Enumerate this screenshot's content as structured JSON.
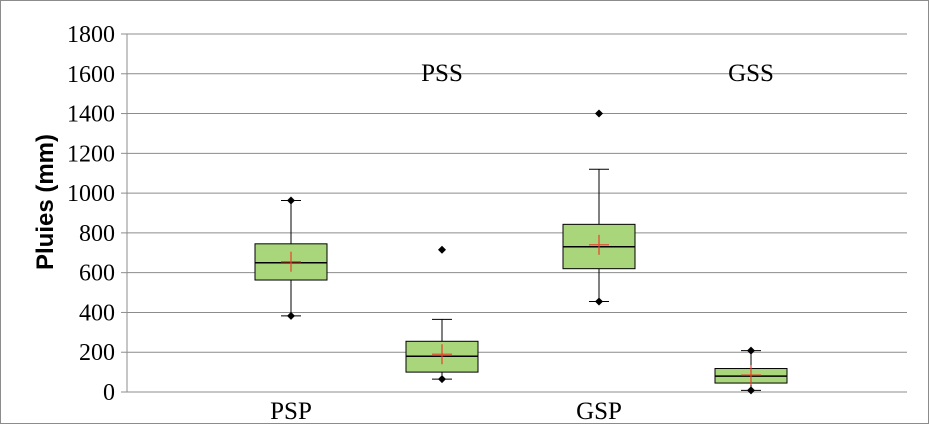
{
  "chart_data": {
    "type": "box",
    "title": "",
    "xlabel": "",
    "ylabel": "Pluies (mm)",
    "ylim": [
      0,
      1800
    ],
    "yticks": [
      0,
      200,
      400,
      600,
      800,
      1000,
      1200,
      1400,
      1600,
      1800
    ],
    "grid": true,
    "colors": {
      "box_fill": "#a9d67a",
      "box_stroke": "#000000",
      "mean_marker": "#e8412b",
      "grid": "#8c8c8c"
    },
    "categories": [
      {
        "label": "PSP",
        "label_position": "bottom",
        "whisker_low": 383,
        "q1": 563,
        "median": 650,
        "q3": 745,
        "whisker_high": 963,
        "mean": 655,
        "outliers": [
          383,
          963
        ]
      },
      {
        "label": "PSS",
        "label_position": "top",
        "whisker_low": 65,
        "q1": 100,
        "median": 180,
        "q3": 255,
        "whisker_high": 365,
        "mean": 190,
        "outliers": [
          715,
          65
        ]
      },
      {
        "label": "GSP",
        "label_position": "bottom",
        "whisker_low": 455,
        "q1": 620,
        "median": 730,
        "q3": 843,
        "whisker_high": 1120,
        "mean": 740,
        "outliers": [
          1400,
          455
        ]
      },
      {
        "label": "GSS",
        "label_position": "top",
        "whisker_low": 8,
        "q1": 45,
        "median": 80,
        "q3": 118,
        "whisker_high": 208,
        "mean": 85,
        "outliers": [
          208,
          8
        ]
      }
    ]
  }
}
